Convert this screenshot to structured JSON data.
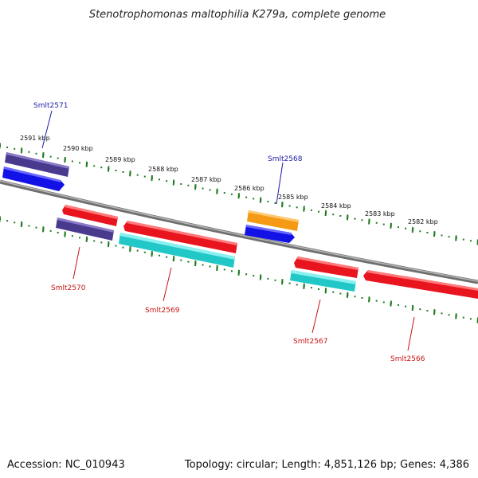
{
  "title": "Stenotrophomonas maltophilia K279a, complete genome",
  "footer": {
    "accession": "Accession: NC_010943",
    "topology": "Topology: circular; Length: 4,851,126 bp; Genes: 4,386"
  },
  "colors": {
    "backbone": "#8a8a8a",
    "tick": "#1e7a1e",
    "plus_label": "#1c1ca8",
    "minus_label": "#c81414",
    "red": "#e8141e",
    "blue": "#1212e6",
    "purple": "#4a3a8e",
    "cyan": "#22c8c8",
    "orange": "#f59a14"
  },
  "scale_ticks": [
    {
      "label": "2591 kbp"
    },
    {
      "label": "2590 kbp"
    },
    {
      "label": "2589 kbp"
    },
    {
      "label": "2588 kbp"
    },
    {
      "label": "2587 kbp"
    },
    {
      "label": "2586 kbp"
    },
    {
      "label": "2585 kbp"
    },
    {
      "label": "2584 kbp"
    },
    {
      "label": "2583 kbp"
    },
    {
      "label": "2582 kbp"
    }
  ],
  "gene_labels": [
    {
      "name": "Smlt2571",
      "strand": "plus"
    },
    {
      "name": "Smlt2568",
      "strand": "plus"
    },
    {
      "name": "Smlt2570",
      "strand": "minus"
    },
    {
      "name": "Smlt2569",
      "strand": "minus"
    },
    {
      "name": "Smlt2567",
      "strand": "minus"
    },
    {
      "name": "Smlt2566",
      "strand": "minus"
    }
  ]
}
